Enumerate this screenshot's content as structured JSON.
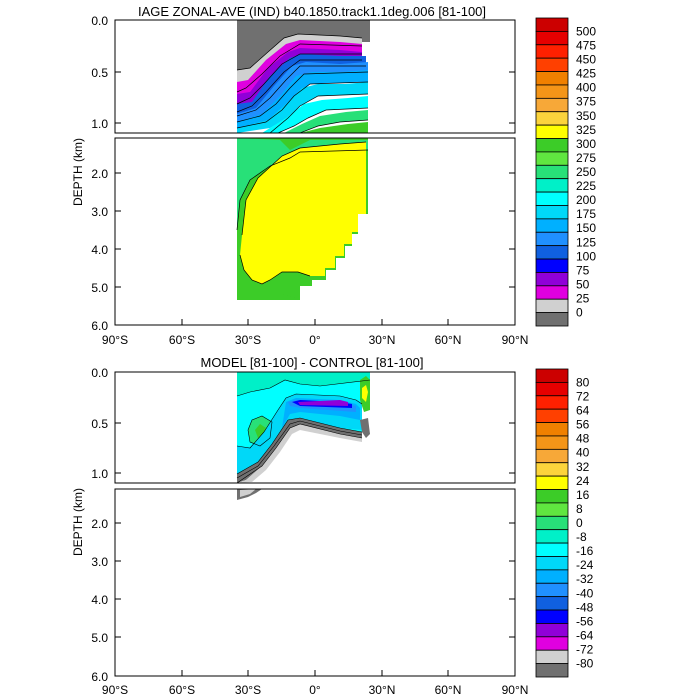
{
  "chart_data": [
    {
      "type": "contour",
      "title": "IAGE ZONAL-AVE (IND) b40.1850.track1.1deg.006 [81-100]",
      "ylabel": "DEPTH (km)",
      "x_ticks": [
        "90°S",
        "60°S",
        "30°S",
        "0°",
        "30°N",
        "60°N",
        "90°N"
      ],
      "x_range": [
        -90,
        90
      ],
      "upper_y_ticks": [
        "0.0",
        "0.5",
        "1.0"
      ],
      "upper_y_range": [
        0,
        1.1
      ],
      "lower_y_ticks": [
        "2.0",
        "3.0",
        "4.0",
        "5.0",
        "6.0"
      ],
      "lower_y_range": [
        1.1,
        6.0
      ],
      "colorbar_labels": [
        "500",
        "475",
        "450",
        "425",
        "400",
        "375",
        "350",
        "325",
        "300",
        "275",
        "250",
        "225",
        "200",
        "175",
        "150",
        "125",
        "100",
        "75",
        "50",
        "25",
        "0"
      ],
      "colorbar_colors": [
        "#cc0000",
        "#e60000",
        "#ff2000",
        "#ff4000",
        "#f08000",
        "#f49518",
        "#f7a838",
        "#fcd43c",
        "#ffff00",
        "#3ccc28",
        "#60e640",
        "#28e078",
        "#00f0c8",
        "#00ffff",
        "#00d8f8",
        "#00b0ff",
        "#2090ff",
        "#1060e0",
        "#0000ff",
        "#9000d8",
        "#e000e0",
        "#d0d0d0",
        "#707070"
      ]
    },
    {
      "type": "contour",
      "title": "MODEL [81-100] - CONTROL [81-100]",
      "ylabel": "DEPTH (km)",
      "x_ticks": [
        "90°S",
        "60°S",
        "30°S",
        "0°",
        "30°N",
        "60°N",
        "90°N"
      ],
      "x_range": [
        -90,
        90
      ],
      "upper_y_ticks": [
        "0.0",
        "0.5",
        "1.0"
      ],
      "upper_y_range": [
        0,
        1.1
      ],
      "lower_y_ticks": [
        "2.0",
        "3.0",
        "4.0",
        "5.0",
        "6.0"
      ],
      "lower_y_range": [
        1.1,
        6.0
      ],
      "colorbar_labels": [
        "80",
        "72",
        "64",
        "56",
        "48",
        "40",
        "32",
        "24",
        "16",
        "8",
        "0",
        "-8",
        "-16",
        "-24",
        "-32",
        "-40",
        "-48",
        "-56",
        "-64",
        "-72",
        "-80"
      ],
      "colorbar_colors": [
        "#cc0000",
        "#e60000",
        "#ff2000",
        "#ff4000",
        "#f08000",
        "#f49518",
        "#f7a838",
        "#fcd43c",
        "#ffff00",
        "#3ccc28",
        "#60e640",
        "#28e078",
        "#00f0c8",
        "#00ffff",
        "#00d8f8",
        "#00b0ff",
        "#2090ff",
        "#1060e0",
        "#0000ff",
        "#9000d8",
        "#e000e0",
        "#d0d0d0",
        "#707070"
      ]
    }
  ]
}
